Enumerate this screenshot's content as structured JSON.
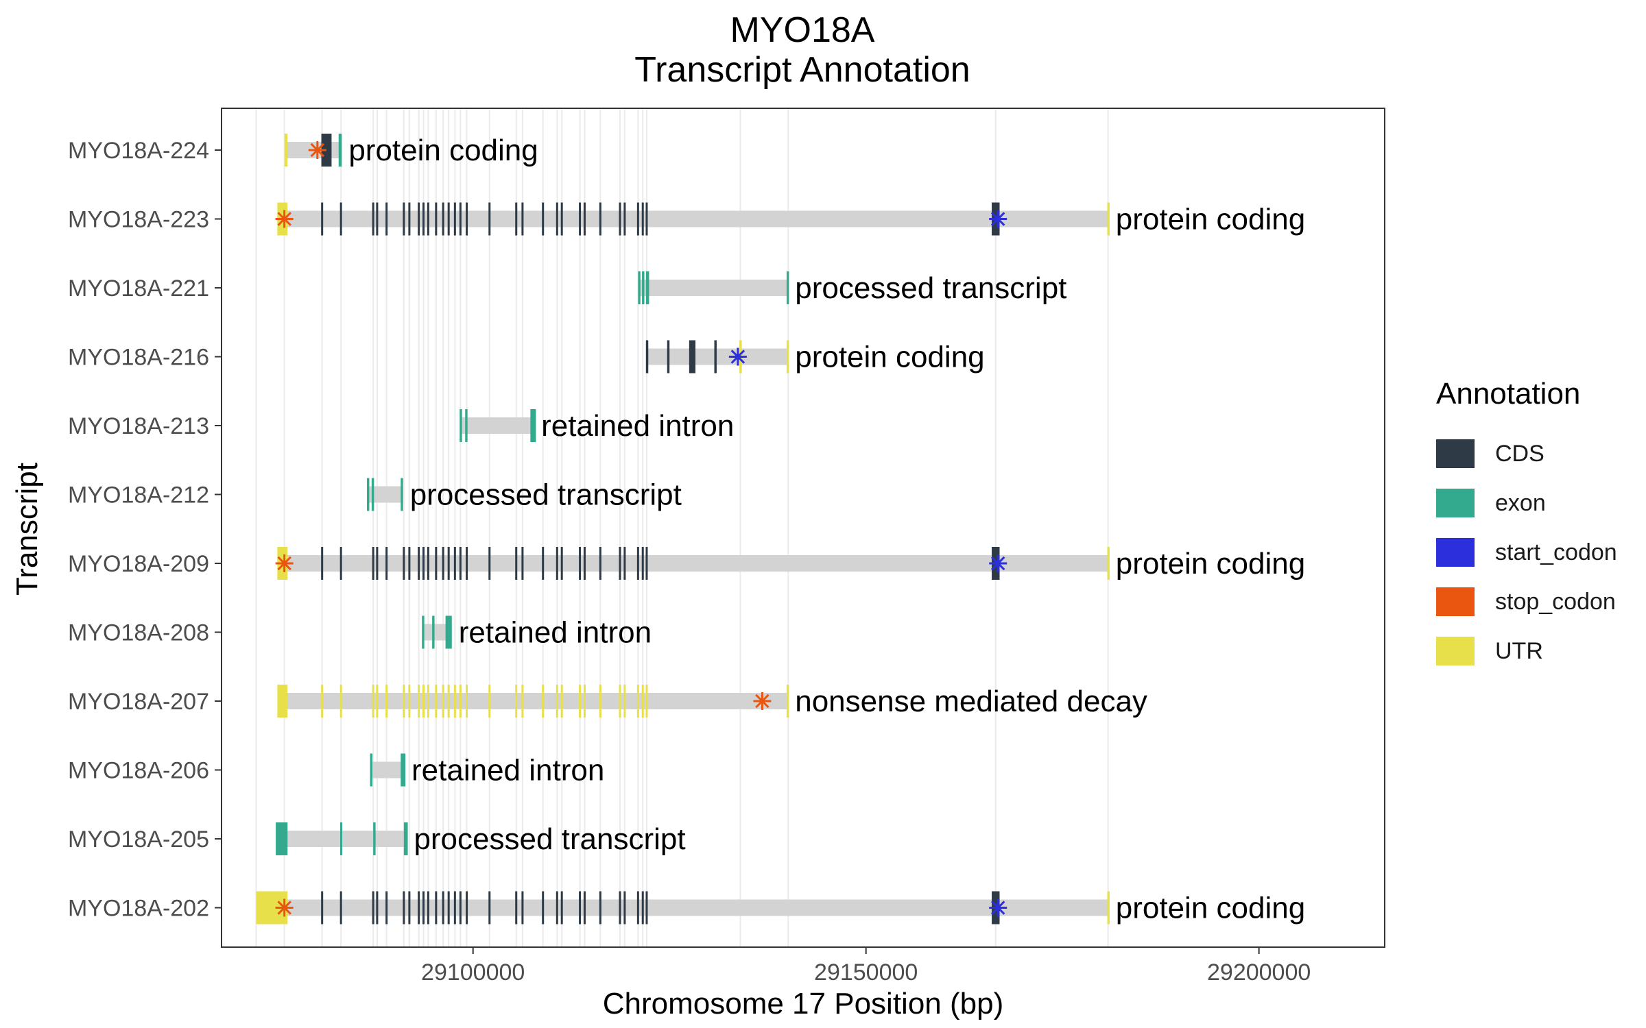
{
  "chart_data": {
    "type": "gene-model",
    "title": "MYO18A",
    "subtitle": "Transcript Annotation",
    "xlabel": "Chromosome 17 Position (bp)",
    "ylabel": "Transcript",
    "xlim": [
      29068000,
      29216000
    ],
    "x_ticks": [
      29100000,
      29150000,
      29200000
    ],
    "x_tick_labels": [
      "29100000",
      "29150000",
      "29200000"
    ],
    "grid": "vertical lines at exon positions",
    "legend": {
      "title": "Annotation",
      "position": "right",
      "entries": [
        {
          "label": "CDS",
          "color": "#2e3a45"
        },
        {
          "label": "exon",
          "color": "#33aa8d"
        },
        {
          "label": "start_codon",
          "color": "#2b2fdc"
        },
        {
          "label": "stop_codon",
          "color": "#ea5610"
        },
        {
          "label": "UTR",
          "color": "#e8e04a"
        }
      ]
    },
    "colors": {
      "intron": "#d3d3d3",
      "grid": "#ebebeb",
      "panel_border": "#333333"
    },
    "exon_positions": [
      29080800,
      29083200,
      29087300,
      29087800,
      29089000,
      29091200,
      29091900,
      29093100,
      29093700,
      29094300,
      29095300,
      29096200,
      29096900,
      29097700,
      29098400,
      29099200,
      29102100,
      29105500,
      29106300,
      29108900,
      29110700,
      29111300,
      29113600,
      29114200,
      29116200,
      29118700,
      29119300,
      29121000,
      29121600,
      29122100
    ],
    "transcripts": [
      {
        "name": "MYO18A-224",
        "label": "protein coding",
        "start": 29076200,
        "end": 29083300,
        "blocks": [
          {
            "start": 29076000,
            "end": 29076400,
            "type": "UTR"
          },
          {
            "start": 29080700,
            "end": 29082000,
            "type": "CDS"
          },
          {
            "start": 29082900,
            "end": 29083300,
            "type": "exon"
          }
        ],
        "codons": [
          {
            "pos": 29080200,
            "type": "stop_codon"
          }
        ]
      },
      {
        "name": "MYO18A-223",
        "label": "protein coding",
        "start": 29076000,
        "end": 29180900,
        "blocks": [
          {
            "start": 29075100,
            "end": 29076400,
            "type": "UTR"
          },
          {
            "start": 29166000,
            "end": 29167000,
            "type": "CDS"
          },
          {
            "start": 29180700,
            "end": 29181000,
            "type": "UTR"
          }
        ],
        "exon_style": "CDS",
        "codons": [
          {
            "pos": 29076000,
            "type": "stop_codon"
          },
          {
            "pos": 29166800,
            "type": "start_codon"
          }
        ]
      },
      {
        "name": "MYO18A-221",
        "label": "processed transcript",
        "start": 29121000,
        "end": 29140100,
        "blocks": [
          {
            "start": 29121000,
            "end": 29121300,
            "type": "exon"
          },
          {
            "start": 29121500,
            "end": 29121800,
            "type": "exon"
          },
          {
            "start": 29122000,
            "end": 29122400,
            "type": "exon"
          },
          {
            "start": 29139900,
            "end": 29140200,
            "type": "exon"
          }
        ],
        "codons": []
      },
      {
        "name": "MYO18A-216",
        "label": "protein coding",
        "start": 29122100,
        "end": 29140100,
        "blocks": [
          {
            "start": 29122000,
            "end": 29122300,
            "type": "CDS"
          },
          {
            "start": 29124700,
            "end": 29125000,
            "type": "CDS"
          },
          {
            "start": 29127500,
            "end": 29128300,
            "type": "CDS"
          },
          {
            "start": 29130700,
            "end": 29131000,
            "type": "CDS"
          },
          {
            "start": 29133900,
            "end": 29134200,
            "type": "UTR"
          },
          {
            "start": 29139900,
            "end": 29140200,
            "type": "UTR"
          }
        ],
        "codons": [
          {
            "pos": 29133700,
            "type": "start_codon"
          }
        ]
      },
      {
        "name": "MYO18A-213",
        "label": "retained intron",
        "start": 29098400,
        "end": 29107800,
        "blocks": [
          {
            "start": 29098300,
            "end": 29098600,
            "type": "exon"
          },
          {
            "start": 29099000,
            "end": 29099300,
            "type": "exon"
          },
          {
            "start": 29107300,
            "end": 29108000,
            "type": "exon"
          }
        ],
        "codons": []
      },
      {
        "name": "MYO18A-212",
        "label": "processed transcript",
        "start": 29086500,
        "end": 29091100,
        "blocks": [
          {
            "start": 29086500,
            "end": 29086800,
            "type": "exon"
          },
          {
            "start": 29087100,
            "end": 29087400,
            "type": "exon"
          },
          {
            "start": 29090800,
            "end": 29091100,
            "type": "exon"
          }
        ],
        "codons": []
      },
      {
        "name": "MYO18A-209",
        "label": "protein coding",
        "start": 29076000,
        "end": 29180900,
        "blocks": [
          {
            "start": 29075100,
            "end": 29076400,
            "type": "UTR"
          },
          {
            "start": 29166000,
            "end": 29167000,
            "type": "CDS"
          },
          {
            "start": 29180700,
            "end": 29181000,
            "type": "UTR"
          }
        ],
        "exon_style": "CDS",
        "codons": [
          {
            "pos": 29076000,
            "type": "stop_codon"
          },
          {
            "pos": 29166800,
            "type": "start_codon"
          }
        ]
      },
      {
        "name": "MYO18A-208",
        "label": "retained intron",
        "start": 29093700,
        "end": 29097300,
        "blocks": [
          {
            "start": 29093500,
            "end": 29093800,
            "type": "exon"
          },
          {
            "start": 29094800,
            "end": 29095100,
            "type": "exon"
          },
          {
            "start": 29096500,
            "end": 29097300,
            "type": "exon"
          }
        ],
        "codons": []
      },
      {
        "name": "MYO18A-207",
        "label": "nonsense mediated decay",
        "start": 29076000,
        "end": 29140100,
        "blocks": [
          {
            "start": 29075100,
            "end": 29076400,
            "type": "UTR"
          },
          {
            "start": 29139900,
            "end": 29140200,
            "type": "UTR"
          }
        ],
        "exon_style": "UTR",
        "codons": [
          {
            "pos": 29136800,
            "type": "stop_codon"
          }
        ]
      },
      {
        "name": "MYO18A-206",
        "label": "retained intron",
        "start": 29087000,
        "end": 29091300,
        "blocks": [
          {
            "start": 29086900,
            "end": 29087200,
            "type": "exon"
          },
          {
            "start": 29090800,
            "end": 29091400,
            "type": "exon"
          }
        ],
        "codons": []
      },
      {
        "name": "MYO18A-205",
        "label": "processed transcript",
        "start": 29076000,
        "end": 29091600,
        "blocks": [
          {
            "start": 29074900,
            "end": 29076400,
            "type": "exon"
          },
          {
            "start": 29083100,
            "end": 29083300,
            "type": "exon"
          },
          {
            "start": 29087300,
            "end": 29087600,
            "type": "exon"
          },
          {
            "start": 29091200,
            "end": 29091700,
            "type": "exon"
          }
        ],
        "codons": []
      },
      {
        "name": "MYO18A-202",
        "label": "protein coding",
        "start": 29076000,
        "end": 29180900,
        "blocks": [
          {
            "start": 29072400,
            "end": 29076400,
            "type": "UTR"
          },
          {
            "start": 29166000,
            "end": 29167000,
            "type": "CDS"
          },
          {
            "start": 29180700,
            "end": 29181000,
            "type": "UTR"
          }
        ],
        "exon_style": "CDS",
        "codons": [
          {
            "pos": 29076000,
            "type": "stop_codon"
          },
          {
            "pos": 29166800,
            "type": "start_codon"
          }
        ]
      }
    ]
  }
}
